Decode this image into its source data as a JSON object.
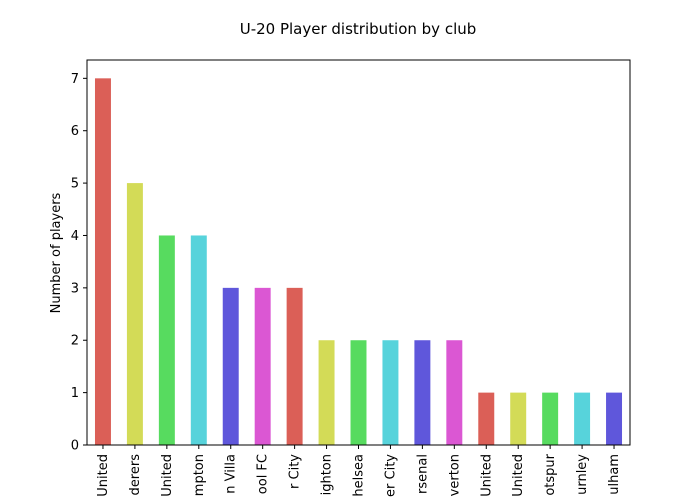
{
  "chart_data": {
    "type": "bar",
    "title": "U-20 Player distribution by club",
    "xlabel": "",
    "ylabel": "Number of players",
    "ylim": [
      0,
      7.35
    ],
    "yticks": [
      0,
      1,
      2,
      3,
      4,
      5,
      6,
      7
    ],
    "grid": false,
    "categories": [
      "United",
      "derers",
      "United",
      "mpton",
      "n Villa",
      "ool FC",
      "r City",
      "ighton",
      "helsea",
      "er City",
      "rsenal",
      "verton",
      "United",
      "United",
      "otspur",
      "urnley",
      "ulham"
    ],
    "values": [
      7,
      5,
      4,
      4,
      3,
      3,
      3,
      2,
      2,
      2,
      2,
      2,
      1,
      1,
      1,
      1,
      1
    ],
    "colors": [
      "#db5f57",
      "#d3db57",
      "#57db5f",
      "#57d3db",
      "#5f57db",
      "#db57d3",
      "#db5f57",
      "#d3db57",
      "#57db5f",
      "#57d3db",
      "#5f57db",
      "#db57d3",
      "#db5f57",
      "#d3db57",
      "#57db5f",
      "#57d3db",
      "#5f57db"
    ]
  }
}
